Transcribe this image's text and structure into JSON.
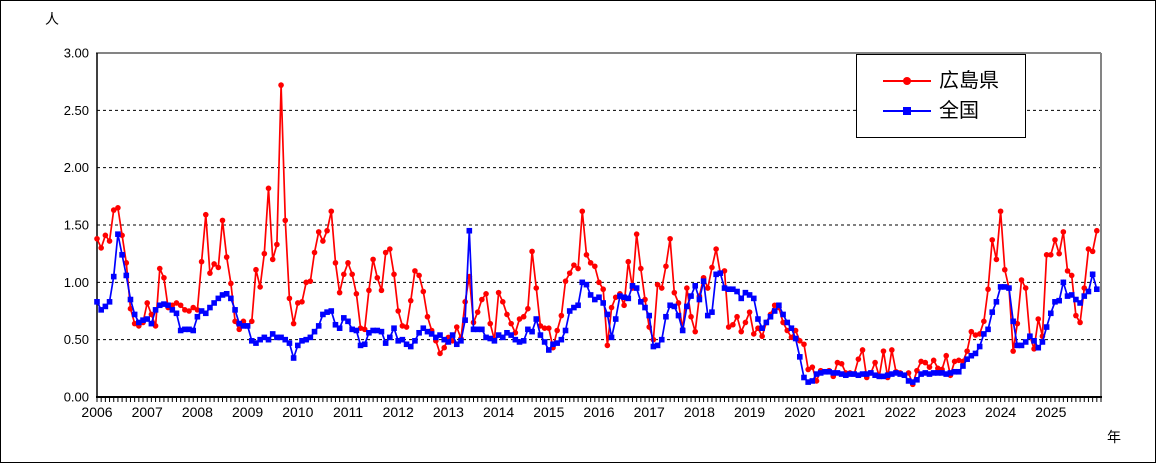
{
  "chart_data": {
    "type": "line",
    "title": "",
    "unit_label": "人",
    "x_axis_label": "年",
    "x_granularity": "monthly",
    "x_start": "2006-01",
    "x_end": "2025-12",
    "years": [
      2006,
      2007,
      2008,
      2009,
      2010,
      2011,
      2012,
      2013,
      2014,
      2015,
      2016,
      2017,
      2018,
      2019,
      2020,
      2021,
      2022,
      2023,
      2024,
      2025
    ],
    "ylim": [
      0.0,
      3.0
    ],
    "y_tick_step": 0.5,
    "y_tick_labels": [
      "0.00",
      "0.50",
      "1.00",
      "1.50",
      "2.00",
      "2.50",
      "3.00"
    ],
    "grid": "horizontal-dashed",
    "legend_position": "top-right-inside",
    "series": [
      {
        "name": "広島県",
        "color": "#FF0000",
        "marker": "circle",
        "values": [
          1.38,
          1.3,
          1.41,
          1.36,
          1.63,
          1.65,
          1.41,
          1.17,
          0.77,
          0.64,
          0.62,
          0.65,
          0.82,
          0.72,
          0.62,
          1.12,
          1.04,
          0.78,
          0.8,
          0.82,
          0.8,
          0.76,
          0.75,
          0.78,
          0.76,
          1.18,
          1.59,
          1.08,
          1.16,
          1.13,
          1.54,
          1.22,
          0.99,
          0.66,
          0.59,
          0.66,
          0.62,
          0.66,
          1.11,
          0.96,
          1.25,
          1.82,
          1.2,
          1.33,
          2.72,
          1.54,
          0.86,
          0.64,
          0.82,
          0.83,
          1.0,
          1.01,
          1.26,
          1.44,
          1.36,
          1.45,
          1.62,
          1.17,
          0.91,
          1.07,
          1.17,
          1.07,
          0.9,
          0.6,
          0.59,
          0.93,
          1.2,
          1.04,
          0.93,
          1.26,
          1.29,
          1.07,
          0.75,
          0.62,
          0.61,
          0.84,
          1.1,
          1.06,
          0.92,
          0.7,
          0.58,
          0.49,
          0.38,
          0.43,
          0.52,
          0.49,
          0.61,
          0.51,
          0.83,
          1.05,
          0.65,
          0.74,
          0.85,
          0.9,
          0.64,
          0.5,
          0.91,
          0.83,
          0.72,
          0.64,
          0.56,
          0.68,
          0.7,
          0.77,
          1.27,
          0.95,
          0.62,
          0.6,
          0.6,
          0.43,
          0.58,
          0.71,
          1.01,
          1.08,
          1.15,
          1.12,
          1.62,
          1.24,
          1.17,
          1.14,
          1.0,
          0.94,
          0.45,
          0.78,
          0.87,
          0.9,
          0.8,
          1.18,
          0.95,
          1.42,
          1.12,
          0.85,
          0.61,
          0.5,
          0.98,
          0.95,
          1.14,
          1.38,
          0.91,
          0.82,
          0.59,
          0.95,
          0.7,
          0.57,
          0.88,
          1.04,
          0.95,
          1.13,
          1.29,
          1.08,
          1.1,
          0.61,
          0.63,
          0.7,
          0.57,
          0.65,
          0.74,
          0.55,
          0.6,
          0.53,
          0.65,
          0.72,
          0.8,
          0.78,
          0.65,
          0.58,
          0.52,
          0.58,
          0.49,
          0.46,
          0.24,
          0.26,
          0.14,
          0.23,
          0.22,
          0.23,
          0.18,
          0.3,
          0.29,
          0.21,
          0.21,
          0.2,
          0.33,
          0.41,
          0.17,
          0.21,
          0.3,
          0.18,
          0.4,
          0.17,
          0.41,
          0.22,
          0.21,
          0.19,
          0.21,
          0.11,
          0.23,
          0.31,
          0.3,
          0.26,
          0.32,
          0.25,
          0.24,
          0.36,
          0.19,
          0.31,
          0.32,
          0.31,
          0.4,
          0.57,
          0.54,
          0.55,
          0.66,
          0.94,
          1.37,
          1.2,
          1.62,
          1.11,
          0.95,
          0.4,
          0.64,
          1.02,
          0.95,
          0.53,
          0.42,
          0.68,
          0.53,
          1.24,
          1.24,
          1.37,
          1.25,
          1.44,
          1.1,
          1.06,
          0.71,
          0.65,
          0.95,
          1.29,
          1.27,
          1.45
        ]
      },
      {
        "name": "全国",
        "color": "#0000FF",
        "marker": "square",
        "values": [
          0.83,
          0.76,
          0.79,
          0.83,
          1.05,
          1.42,
          1.24,
          1.06,
          0.85,
          0.72,
          0.65,
          0.67,
          0.68,
          0.64,
          0.76,
          0.8,
          0.81,
          0.8,
          0.76,
          0.73,
          0.58,
          0.59,
          0.59,
          0.58,
          0.7,
          0.75,
          0.73,
          0.78,
          0.82,
          0.86,
          0.89,
          0.9,
          0.86,
          0.76,
          0.64,
          0.62,
          0.62,
          0.49,
          0.47,
          0.5,
          0.52,
          0.5,
          0.55,
          0.52,
          0.52,
          0.5,
          0.47,
          0.34,
          0.45,
          0.49,
          0.5,
          0.52,
          0.57,
          0.62,
          0.72,
          0.74,
          0.75,
          0.63,
          0.6,
          0.69,
          0.66,
          0.59,
          0.58,
          0.45,
          0.46,
          0.56,
          0.58,
          0.58,
          0.57,
          0.47,
          0.52,
          0.6,
          0.49,
          0.5,
          0.46,
          0.44,
          0.49,
          0.56,
          0.6,
          0.57,
          0.55,
          0.52,
          0.54,
          0.5,
          0.48,
          0.54,
          0.46,
          0.49,
          0.67,
          1.45,
          0.59,
          0.59,
          0.59,
          0.52,
          0.51,
          0.49,
          0.54,
          0.52,
          0.56,
          0.54,
          0.5,
          0.48,
          0.49,
          0.59,
          0.57,
          0.68,
          0.54,
          0.48,
          0.41,
          0.46,
          0.47,
          0.5,
          0.58,
          0.75,
          0.78,
          0.8,
          1.0,
          0.98,
          0.89,
          0.85,
          0.87,
          0.82,
          0.72,
          0.52,
          0.68,
          0.88,
          0.87,
          0.86,
          0.97,
          0.95,
          0.83,
          0.78,
          0.71,
          0.44,
          0.45,
          0.5,
          0.7,
          0.8,
          0.79,
          0.71,
          0.58,
          0.79,
          0.88,
          0.97,
          0.85,
          1.01,
          0.71,
          0.74,
          1.07,
          1.08,
          0.95,
          0.94,
          0.94,
          0.92,
          0.86,
          0.91,
          0.89,
          0.86,
          0.68,
          0.6,
          0.65,
          0.7,
          0.75,
          0.8,
          0.72,
          0.65,
          0.6,
          0.51,
          0.35,
          0.17,
          0.13,
          0.14,
          0.2,
          0.21,
          0.22,
          0.22,
          0.21,
          0.21,
          0.2,
          0.19,
          0.2,
          0.2,
          0.19,
          0.2,
          0.2,
          0.21,
          0.19,
          0.18,
          0.18,
          0.19,
          0.2,
          0.21,
          0.2,
          0.19,
          0.14,
          0.13,
          0.15,
          0.2,
          0.21,
          0.2,
          0.21,
          0.21,
          0.21,
          0.2,
          0.21,
          0.22,
          0.22,
          0.27,
          0.33,
          0.36,
          0.38,
          0.44,
          0.55,
          0.59,
          0.74,
          0.83,
          0.96,
          0.96,
          0.95,
          0.66,
          0.45,
          0.45,
          0.48,
          0.53,
          0.49,
          0.43,
          0.48,
          0.61,
          0.73,
          0.83,
          0.84,
          1.0,
          0.88,
          0.89,
          0.85,
          0.82,
          0.88,
          0.92,
          1.07,
          0.94
        ]
      }
    ]
  }
}
